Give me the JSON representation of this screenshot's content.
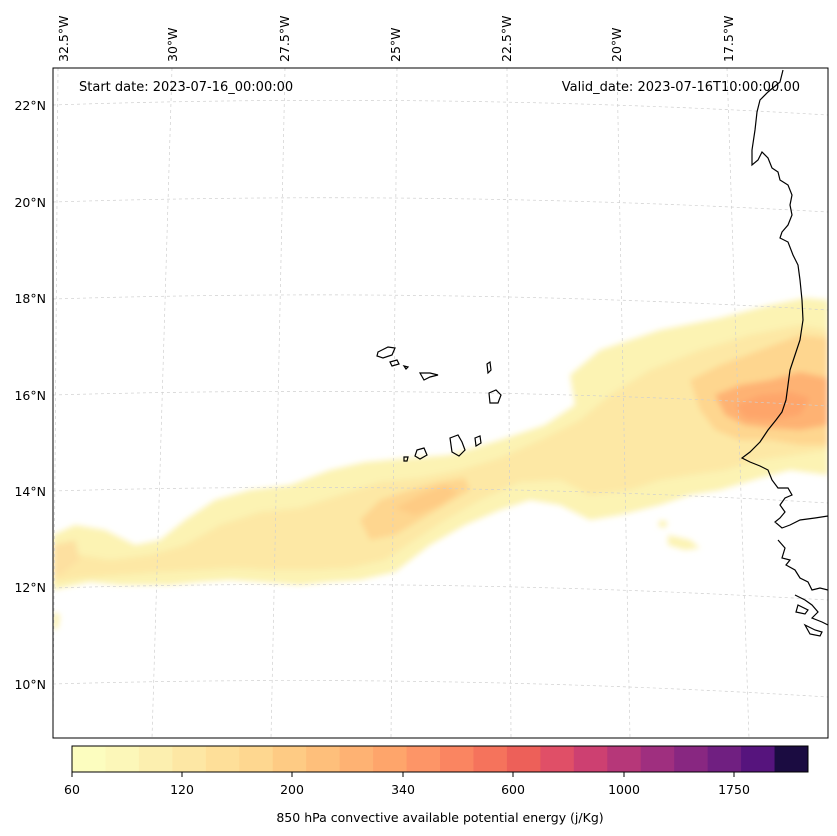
{
  "header": {
    "start_date": "Start date: 2023-07-16_00:00:00",
    "valid_date": "Valid_date: 2023-07-16T10:00:00.00"
  },
  "map": {
    "lon_labels": [
      "32.5°W",
      "30°W",
      "27.5°W",
      "25°W",
      "22.5°W",
      "20°W",
      "17.5°W"
    ],
    "lat_labels": [
      "22°N",
      "20°N",
      "18°N",
      "16°N",
      "14°N",
      "12°N",
      "10°N"
    ],
    "gridlines": "dashed"
  },
  "colorbar": {
    "label": "850 hPa convective available potential energy (j/Kg)",
    "tick_labels": [
      "60",
      "120",
      "200",
      "340",
      "600",
      "1000",
      "1750"
    ],
    "colors": [
      "#fcfdbf",
      "#fcf7b9",
      "#fcefaf",
      "#fde7a4",
      "#fedf99",
      "#fed790",
      "#fecb84",
      "#febf7b",
      "#feb273",
      "#fea56b",
      "#fd9567",
      "#fa8561",
      "#f5735c",
      "#ed6059",
      "#e04f67",
      "#cd4071",
      "#b63779",
      "#9f2f7f",
      "#882781",
      "#701f81",
      "#56147d",
      "#1b0c41"
    ]
  }
}
